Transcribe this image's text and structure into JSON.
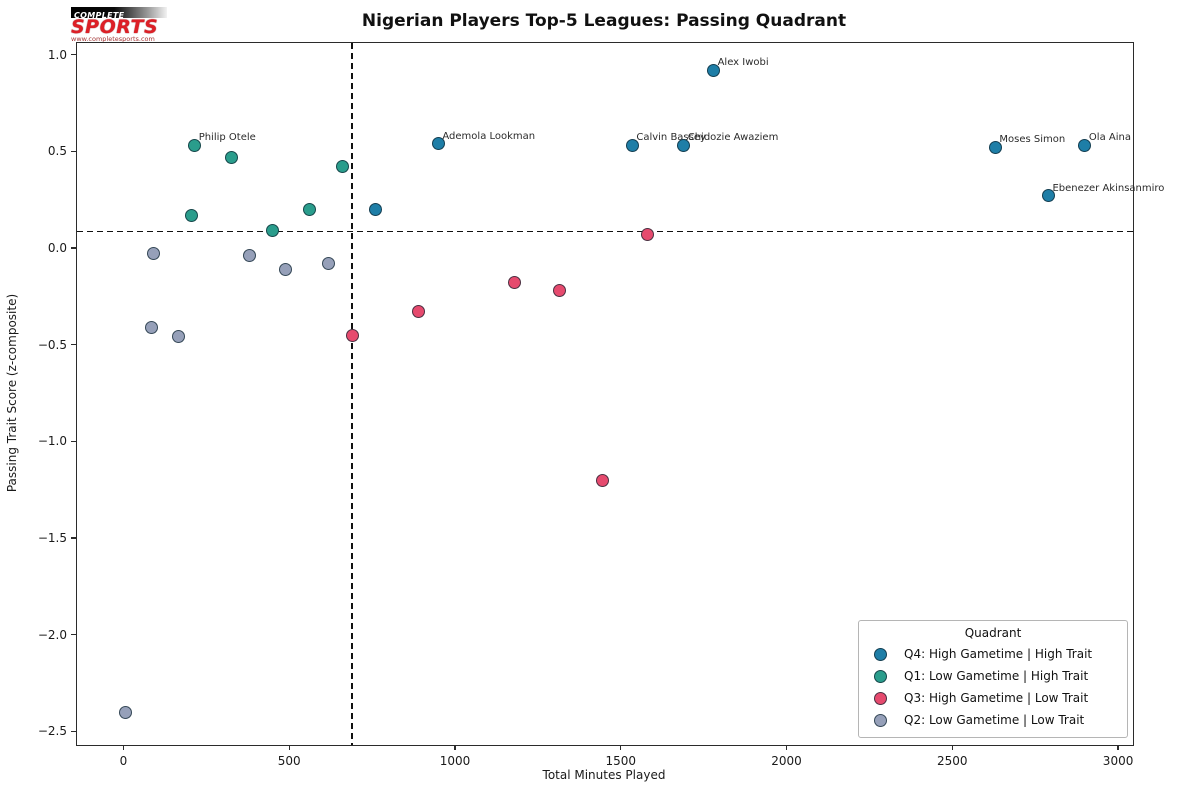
{
  "logo": {
    "complete": "COMPLETE",
    "sports": "SPORTS",
    "url": "www.completesports.com"
  },
  "chart_data": {
    "type": "scatter",
    "title": "Nigerian Players Top-5 Leagues: Passing Quadrant",
    "xlabel": "Total Minutes Played",
    "ylabel": "Passing Trait Score (z-composite)",
    "xlim": [
      -140,
      3045
    ],
    "ylim": [
      -2.57,
      1.06
    ],
    "xticks": [
      0,
      500,
      1000,
      1500,
      2000,
      2500,
      3000
    ],
    "xtick_labels": [
      "0",
      "500",
      "1000",
      "1500",
      "2000",
      "2500",
      "3000"
    ],
    "yticks": [
      1.0,
      0.5,
      0.0,
      -0.5,
      -1.0,
      -1.5,
      -2.0,
      -2.5
    ],
    "ytick_labels": [
      "1.0",
      "0.5",
      "0.0",
      "−0.5",
      "−1.0",
      "−1.5",
      "−2.0",
      "−2.5"
    ],
    "grid": false,
    "reference_lines": {
      "vline_x": 690,
      "hline_y": 0.085,
      "style": "dashed",
      "color": "#111111"
    },
    "legend": {
      "title": "Quadrant",
      "position": "lower right"
    },
    "series": [
      {
        "name": "Q4: High Gametime | High Trait",
        "color": "#1e7ea7",
        "points": [
          {
            "x": 1780,
            "y": 0.92,
            "label": "Alex Iwobi"
          },
          {
            "x": 950,
            "y": 0.54,
            "label": "Ademola Lookman"
          },
          {
            "x": 1535,
            "y": 0.53,
            "label": "Calvin Bassey"
          },
          {
            "x": 1690,
            "y": 0.53,
            "label": "Chidozie Awaziem"
          },
          {
            "x": 2630,
            "y": 0.52,
            "label": "Moses Simon"
          },
          {
            "x": 2900,
            "y": 0.53,
            "label": "Ola Aina"
          },
          {
            "x": 2790,
            "y": 0.27,
            "label": "Ebenezer Akinsanmiro"
          },
          {
            "x": 760,
            "y": 0.2,
            "label": ""
          }
        ]
      },
      {
        "name": "Q1: Low Gametime | High Trait",
        "color": "#2a9d8c",
        "points": [
          {
            "x": 215,
            "y": 0.53,
            "label": "Philip Otele"
          },
          {
            "x": 325,
            "y": 0.47,
            "label": ""
          },
          {
            "x": 660,
            "y": 0.42,
            "label": ""
          },
          {
            "x": 560,
            "y": 0.2,
            "label": ""
          },
          {
            "x": 205,
            "y": 0.17,
            "label": ""
          },
          {
            "x": 450,
            "y": 0.09,
            "label": ""
          }
        ]
      },
      {
        "name": "Q3: High Gametime | Low Trait",
        "color": "#e64a6e",
        "points": [
          {
            "x": 1580,
            "y": 0.07,
            "label": ""
          },
          {
            "x": 1180,
            "y": -0.18,
            "label": ""
          },
          {
            "x": 1315,
            "y": -0.22,
            "label": ""
          },
          {
            "x": 890,
            "y": -0.33,
            "label": ""
          },
          {
            "x": 690,
            "y": -0.45,
            "label": ""
          },
          {
            "x": 1445,
            "y": -1.2,
            "label": ""
          }
        ]
      },
      {
        "name": "Q2: Low Gametime | Low Trait",
        "color": "#96a0b9",
        "points": [
          {
            "x": 90,
            "y": -0.03,
            "label": ""
          },
          {
            "x": 380,
            "y": -0.04,
            "label": ""
          },
          {
            "x": 620,
            "y": -0.08,
            "label": ""
          },
          {
            "x": 490,
            "y": -0.11,
            "label": ""
          },
          {
            "x": 85,
            "y": -0.41,
            "label": ""
          },
          {
            "x": 165,
            "y": -0.46,
            "label": ""
          },
          {
            "x": 5,
            "y": -2.4,
            "label": ""
          }
        ]
      }
    ]
  }
}
